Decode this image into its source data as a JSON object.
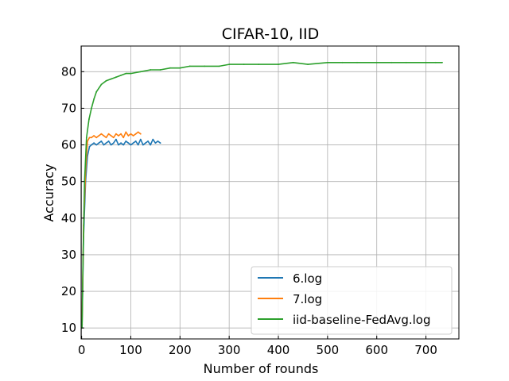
{
  "chart_data": {
    "type": "line",
    "title": "CIFAR-10, IID",
    "xlabel": "Number of rounds",
    "ylabel": "Accuracy",
    "xlim": [
      -1,
      767
    ],
    "ylim": [
      7,
      87
    ],
    "xticks": [
      0,
      100,
      200,
      300,
      400,
      500,
      600,
      700
    ],
    "yticks": [
      10,
      20,
      30,
      40,
      50,
      60,
      70,
      80
    ],
    "grid": true,
    "legend_position": "lower right",
    "series": [
      {
        "name": "6.log",
        "color": "#1f77b4",
        "x": [
          1,
          4,
          8,
          12,
          16,
          20,
          25,
          30,
          35,
          40,
          45,
          50,
          55,
          60,
          65,
          70,
          75,
          80,
          85,
          90,
          95,
          100,
          105,
          110,
          115,
          120,
          125,
          130,
          135,
          140,
          145,
          150,
          155,
          160
        ],
        "y": [
          11,
          35,
          50,
          57,
          59.5,
          60,
          60.5,
          60,
          60.5,
          61,
          60,
          60.5,
          61,
          60,
          60.5,
          61.5,
          60,
          60.5,
          60,
          61,
          60.5,
          60,
          60.5,
          61,
          60,
          61.5,
          60,
          60.5,
          61,
          60,
          61.5,
          60.5,
          61,
          60.5
        ]
      },
      {
        "name": "7.log",
        "color": "#ff7f0e",
        "x": [
          1,
          4,
          8,
          12,
          16,
          20,
          25,
          30,
          35,
          40,
          45,
          50,
          55,
          60,
          65,
          70,
          75,
          80,
          85,
          90,
          95,
          100,
          105,
          110,
          115,
          120
        ],
        "y": [
          11,
          38,
          53,
          61,
          62,
          62,
          62.5,
          62,
          62.5,
          63,
          62.5,
          62,
          63,
          62.5,
          62,
          63,
          62.5,
          63,
          62,
          63.5,
          62.5,
          63,
          62.5,
          63,
          63.5,
          63
        ]
      },
      {
        "name": "iid-baseline-FedAvg.log",
        "color": "#2ca02c",
        "x": [
          1,
          3,
          6,
          10,
          15,
          20,
          25,
          30,
          40,
          50,
          60,
          70,
          80,
          90,
          100,
          120,
          140,
          160,
          180,
          200,
          220,
          250,
          280,
          300,
          330,
          360,
          400,
          430,
          460,
          500,
          530,
          560,
          600,
          630,
          660,
          700,
          720,
          733
        ],
        "y": [
          10,
          30,
          50,
          62,
          67,
          70,
          72.5,
          74.5,
          76.5,
          77.5,
          78,
          78.5,
          79,
          79.5,
          79.5,
          80,
          80.5,
          80.5,
          81,
          81,
          81.5,
          81.5,
          81.5,
          82,
          82,
          82,
          82,
          82.5,
          82,
          82.5,
          82.5,
          82.5,
          82.5,
          82.5,
          82.5,
          82.5,
          82.5,
          82.5
        ]
      }
    ]
  }
}
